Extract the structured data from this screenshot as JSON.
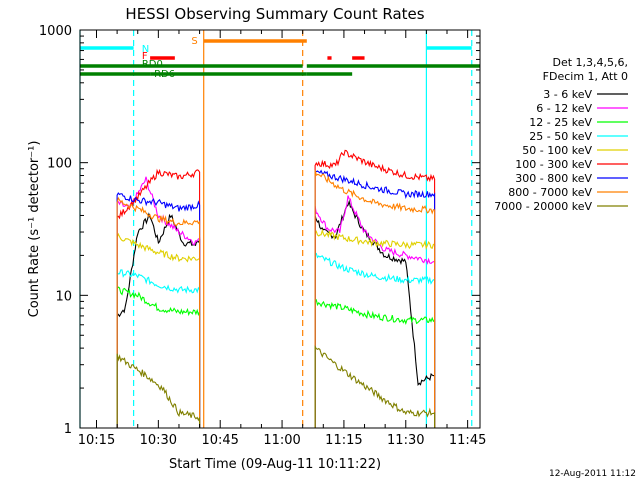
{
  "chart_data": {
    "type": "line",
    "title": "HESSI Observing Summary Count Rates",
    "xlabel": "Start Time (09-Aug-11 10:11:22)",
    "ylabel": "Count Rate (s⁻¹ detector⁻¹)",
    "y_scale": "log",
    "ylim": [
      1,
      1000
    ],
    "xlim": [
      "10:11",
      "11:48"
    ],
    "x_tick_labels": [
      "10:15",
      "10:30",
      "10:45",
      "11:00",
      "11:15",
      "11:30",
      "11:45"
    ],
    "y_tick_labels": [
      "1",
      "10",
      "100",
      "1000"
    ],
    "grid": false,
    "legend_position": "right",
    "legend_header": [
      "Det 1,3,4,5,6,",
      "FDecim 1, Att 0"
    ],
    "series": [
      {
        "name": "3 - 6 keV",
        "color": "#000000",
        "segments": [
          [
            [
              "10:20",
              7
            ],
            [
              "10:22",
              8
            ],
            [
              "10:25",
              30
            ],
            [
              "10:28",
              40
            ],
            [
              "10:30",
              25
            ],
            [
              "10:33",
              40
            ],
            [
              "10:36",
              25
            ],
            [
              "10:39",
              24
            ],
            [
              "10:40",
              26
            ]
          ],
          [
            [
              "11:08",
              40
            ],
            [
              "11:10",
              30
            ],
            [
              "11:13",
              28
            ],
            [
              "11:16",
              50
            ],
            [
              "11:20",
              30
            ],
            [
              "11:25",
              20
            ],
            [
              "11:30",
              18
            ],
            [
              "11:33",
              2.2
            ],
            [
              "11:37",
              2.5
            ]
          ]
        ]
      },
      {
        "name": "6 - 12 keV",
        "color": "#ff00ff",
        "segments": [
          [
            [
              "10:20",
              50
            ],
            [
              "10:23",
              45
            ],
            [
              "10:27",
              75
            ],
            [
              "10:30",
              40
            ],
            [
              "10:35",
              30
            ],
            [
              "10:39",
              25
            ],
            [
              "10:40",
              27
            ]
          ],
          [
            [
              "11:08",
              45
            ],
            [
              "11:11",
              32
            ],
            [
              "11:14",
              30
            ],
            [
              "11:16",
              55
            ],
            [
              "11:20",
              30
            ],
            [
              "11:25",
              22
            ],
            [
              "11:30",
              20
            ],
            [
              "11:37",
              18
            ]
          ]
        ]
      },
      {
        "name": "12 - 25 keV",
        "color": "#00ff00",
        "segments": [
          [
            [
              "10:20",
              11
            ],
            [
              "10:25",
              10
            ],
            [
              "10:30",
              8
            ],
            [
              "10:35",
              7.5
            ],
            [
              "10:40",
              7.5
            ]
          ],
          [
            [
              "11:08",
              9
            ],
            [
              "11:15",
              8
            ],
            [
              "11:22",
              7
            ],
            [
              "11:30",
              6.5
            ],
            [
              "11:37",
              6.5
            ]
          ]
        ]
      },
      {
        "name": "25 - 50 keV",
        "color": "#00ffff",
        "segments": [
          [
            [
              "10:20",
              15
            ],
            [
              "10:25",
              14
            ],
            [
              "10:30",
              12
            ],
            [
              "10:35",
              11
            ],
            [
              "10:40",
              11
            ]
          ],
          [
            [
              "11:08",
              20
            ],
            [
              "11:15",
              16
            ],
            [
              "11:22",
              14
            ],
            [
              "11:30",
              13
            ],
            [
              "11:37",
              13
            ]
          ]
        ]
      },
      {
        "name": "50 - 100 keV",
        "color": "#e0d000",
        "segments": [
          [
            [
              "10:20",
              28
            ],
            [
              "10:25",
              24
            ],
            [
              "10:30",
              21
            ],
            [
              "10:35",
              19
            ],
            [
              "10:40",
              19
            ]
          ],
          [
            [
              "11:08",
              30
            ],
            [
              "11:15",
              27
            ],
            [
              "11:22",
              25
            ],
            [
              "11:30",
              24
            ],
            [
              "11:37",
              24
            ]
          ]
        ]
      },
      {
        "name": "100 - 300 keV",
        "color": "#ff0000",
        "segments": [
          [
            [
              "10:20",
              38
            ],
            [
              "10:25",
              55
            ],
            [
              "10:30",
              85
            ],
            [
              "10:35",
              78
            ],
            [
              "10:40",
              85
            ]
          ],
          [
            [
              "11:08",
              100
            ],
            [
              "11:13",
              95
            ],
            [
              "11:15",
              120
            ],
            [
              "11:22",
              95
            ],
            [
              "11:30",
              80
            ],
            [
              "11:37",
              75
            ]
          ]
        ]
      },
      {
        "name": "300 - 800 keV",
        "color": "#0000ff",
        "segments": [
          [
            [
              "10:20",
              58
            ],
            [
              "10:25",
              52
            ],
            [
              "10:30",
              50
            ],
            [
              "10:35",
              45
            ],
            [
              "10:40",
              48
            ]
          ],
          [
            [
              "11:08",
              85
            ],
            [
              "11:15",
              75
            ],
            [
              "11:22",
              65
            ],
            [
              "11:30",
              58
            ],
            [
              "11:37",
              58
            ]
          ]
        ]
      },
      {
        "name": "800 - 7000 keV",
        "color": "#ff8000",
        "segments": [
          [
            [
              "10:20",
              52
            ],
            [
              "10:25",
              45
            ],
            [
              "10:30",
              38
            ],
            [
              "10:35",
              35
            ],
            [
              "10:40",
              36
            ]
          ],
          [
            [
              "11:08",
              85
            ],
            [
              "11:15",
              62
            ],
            [
              "11:22",
              50
            ],
            [
              "11:30",
              45
            ],
            [
              "11:37",
              44
            ]
          ]
        ]
      },
      {
        "name": "7000 - 20000 keV",
        "color": "#808000",
        "segments": [
          [
            [
              "10:20",
              3.5
            ],
            [
              "10:23",
              3.0
            ],
            [
              "10:27",
              2.5
            ],
            [
              "10:31",
              2.0
            ],
            [
              "10:35",
              1.3
            ],
            [
              "10:40",
              1.2
            ]
          ],
          [
            [
              "11:08",
              4.0
            ],
            [
              "11:13",
              3.0
            ],
            [
              "11:18",
              2.3
            ],
            [
              "11:24",
              1.7
            ],
            [
              "11:30",
              1.3
            ],
            [
              "11:37",
              1.3
            ]
          ]
        ]
      }
    ],
    "flag_bars": [
      {
        "label": "S",
        "color": "#ff8000",
        "segments": [
          [
            "10:41",
            "11:06"
          ]
        ]
      },
      {
        "label": "N",
        "color": "#00ffff",
        "segments": [
          [
            "10:11",
            "10:24"
          ],
          [
            "11:35",
            "11:46"
          ]
        ]
      },
      {
        "label": "F",
        "color": "#ff0000",
        "segments": [
          [
            "10:28",
            "10:34"
          ],
          [
            "11:11",
            "11:12"
          ],
          [
            "11:17",
            "11:20"
          ]
        ]
      },
      {
        "label": "RD0",
        "color": "#008000",
        "segments": [
          [
            "10:11",
            "11:05"
          ],
          [
            "11:06",
            "11:48"
          ]
        ]
      },
      {
        "label": "RD6",
        "color": "#008000",
        "segments": [
          [
            "10:11",
            "10:28"
          ],
          [
            "10:28",
            "11:06"
          ],
          [
            "11:06",
            "11:17"
          ]
        ]
      }
    ],
    "vertical_lines": [
      {
        "time": "10:11",
        "color": "#00ffff",
        "style": "solid"
      },
      {
        "time": "10:24",
        "color": "#00ffff",
        "style": "dashed"
      },
      {
        "time": "10:41",
        "color": "#ff8000",
        "style": "solid"
      },
      {
        "time": "11:05",
        "color": "#ff8000",
        "style": "dashed"
      },
      {
        "time": "11:35",
        "color": "#00ffff",
        "style": "solid"
      },
      {
        "time": "11:46",
        "color": "#00ffff",
        "style": "dashed"
      }
    ]
  },
  "footer": {
    "timestamp": "12-Aug-2011 11:12"
  }
}
